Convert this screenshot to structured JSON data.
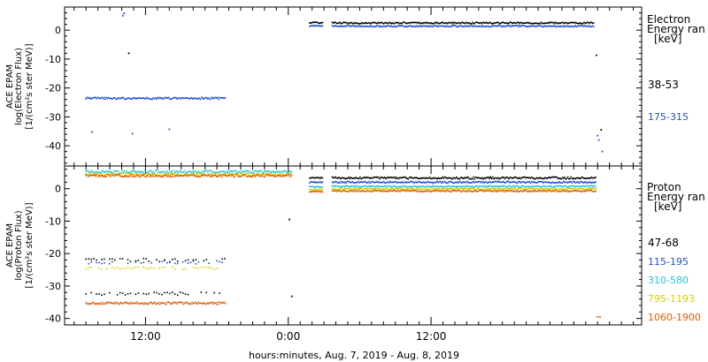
{
  "chart_data": [
    {
      "type": "scatter",
      "ylabel": [
        "ACE EPAM",
        "log(Electron Flux)",
        "[1/(cm²s ster MeV)]"
      ],
      "ylim": [
        -47,
        8
      ],
      "yticks": [
        0,
        -10,
        -20,
        -30,
        -40
      ],
      "legend_title": [
        "Electron",
        "Energy ran",
        "[keV]"
      ],
      "legend_position": "right",
      "series": [
        {
          "name": "38-53",
          "color": "#000000",
          "segments": [
            {
              "x0": 7.0,
              "x1": 7.0,
              "y": -23.8,
              "jitter": 0.3
            },
            {
              "x0": 25.8,
              "x1": 26.9,
              "y": 2.6,
              "jitter": 0.2
            },
            {
              "x0": 27.7,
              "x1": 49.7,
              "y": 2.5,
              "jitter": 0.25
            }
          ],
          "points": [
            [
              10.6,
              -8.0
            ],
            [
              49.9,
              -8.7
            ],
            [
              50.3,
              -34.5
            ]
          ]
        },
        {
          "name": "175-315",
          "color": "#1f4fd0",
          "segments": [
            {
              "x0": 7.0,
              "x1": 18.7,
              "y": -23.6,
              "jitter": 0.35
            },
            {
              "x0": 25.8,
              "x1": 26.9,
              "y": 1.5,
              "jitter": 0.2
            },
            {
              "x0": 27.7,
              "x1": 49.7,
              "y": 1.4,
              "jitter": 0.25
            }
          ],
          "points": [
            [
              10.2,
              5.8
            ],
            [
              10.1,
              5.0
            ],
            [
              7.5,
              -35.2
            ],
            [
              10.9,
              -35.8
            ],
            [
              14.0,
              -34.3
            ],
            [
              50.0,
              -36.5
            ],
            [
              50.1,
              -38.0
            ],
            [
              50.4,
              -42.0
            ]
          ]
        }
      ]
    },
    {
      "type": "scatter",
      "ylabel": [
        "ACE EPAM",
        "log(Proton Flux)",
        "[1/(cm²s ster MeV)]"
      ],
      "ylim": [
        -42,
        7
      ],
      "yticks": [
        0,
        -10,
        -20,
        -30,
        -40
      ],
      "legend_title": [
        "Proton",
        "Energy ran",
        "[keV]"
      ],
      "legend_position": "right",
      "series": [
        {
          "name": "47-68",
          "color": "#000000",
          "segments": [
            {
              "x0": 7.0,
              "x1": 18.7,
              "y": -22.0,
              "jitter": 0.5,
              "sparse": true
            },
            {
              "x0": 7.0,
              "x1": 18.7,
              "y": -32.4,
              "jitter": 0.5,
              "sparse": true
            },
            {
              "x0": 25.8,
              "x1": 26.9,
              "y": 3.3,
              "jitter": 0.2
            },
            {
              "x0": 27.7,
              "x1": 49.9,
              "y": 3.3,
              "jitter": 0.3
            }
          ],
          "points": [
            [
              24.1,
              -9.5
            ],
            [
              24.3,
              -33.2
            ],
            [
              41.0,
              3.6
            ]
          ]
        },
        {
          "name": "115-195",
          "color": "#1f4fd0",
          "segments": [
            {
              "x0": 7.0,
              "x1": 18.7,
              "y": -22.7,
              "jitter": 0.5,
              "sparse": true
            },
            {
              "x0": 25.8,
              "x1": 26.9,
              "y": 2.0,
              "jitter": 0.2
            },
            {
              "x0": 27.7,
              "x1": 49.9,
              "y": 2.0,
              "jitter": 0.25
            }
          ]
        },
        {
          "name": "310-580",
          "color": "#1ec8d8",
          "segments": [
            {
              "x0": 7.0,
              "x1": 24.3,
              "y": 5.2,
              "jitter": 0.4
            },
            {
              "x0": 25.8,
              "x1": 26.9,
              "y": 0.6,
              "jitter": 0.2
            },
            {
              "x0": 27.7,
              "x1": 49.9,
              "y": 0.7,
              "jitter": 0.25
            }
          ]
        },
        {
          "name": "795-1193",
          "color": "#d8d000",
          "segments": [
            {
              "x0": 7.0,
              "x1": 18.7,
              "y": -24.5,
              "jitter": 0.4,
              "sparse": true
            },
            {
              "x0": 7.0,
              "x1": 24.3,
              "y": 4.4,
              "jitter": 0.4
            },
            {
              "x0": 25.8,
              "x1": 26.9,
              "y": -0.3,
              "jitter": 0.2
            },
            {
              "x0": 27.7,
              "x1": 49.9,
              "y": -0.1,
              "jitter": 0.25
            }
          ]
        },
        {
          "name": "1060-1900",
          "color": "#e85a00",
          "segments": [
            {
              "x0": 7.0,
              "x1": 18.7,
              "y": -35.3,
              "jitter": 0.35
            },
            {
              "x0": 7.0,
              "x1": 24.3,
              "y": 4.0,
              "jitter": 0.4
            },
            {
              "x0": 25.8,
              "x1": 26.9,
              "y": -0.9,
              "jitter": 0.2
            },
            {
              "x0": 27.7,
              "x1": 49.9,
              "y": -0.7,
              "jitter": 0.25
            }
          ],
          "points": [
            [
              50.0,
              -39.5
            ],
            [
              50.2,
              -39.6
            ]
          ]
        }
      ]
    }
  ],
  "x_axis": {
    "label": "hours:minutes, Aug.  7, 2019 - Aug.  8, 2019",
    "range": [
      5.2,
      53.7
    ],
    "ticks": [
      {
        "x": 12,
        "label": "12:00"
      },
      {
        "x": 24,
        "label": "0:00"
      },
      {
        "x": 36,
        "label": "12:00"
      }
    ],
    "minor_step": 1
  }
}
